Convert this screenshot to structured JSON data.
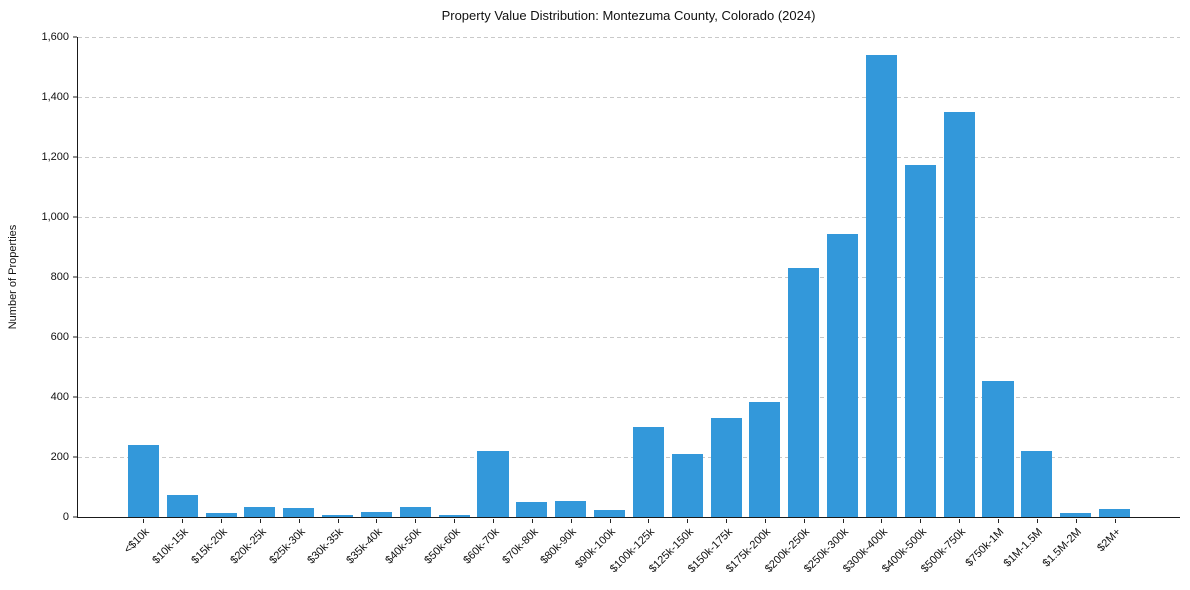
{
  "chart_data": {
    "type": "bar",
    "title": "Property Value Distribution: Montezuma County, Colorado (2024)",
    "xlabel": "",
    "ylabel": "Number of Properties",
    "categories": [
      "<$10k",
      "$10k-15k",
      "$15k-20k",
      "$20k-25k",
      "$25k-30k",
      "$30k-35k",
      "$35k-40k",
      "$40k-50k",
      "$50k-60k",
      "$60k-70k",
      "$70k-80k",
      "$80k-90k",
      "$90k-100k",
      "$100k-125k",
      "$125k-150k",
      "$150k-175k",
      "$175k-200k",
      "$200k-250k",
      "$250k-300k",
      "$300k-400k",
      "$400k-500k",
      "$500k-750k",
      "$750k-1M",
      "$1M-1.5M",
      "$1.5M-2M",
      "$2M+"
    ],
    "values": [
      240,
      75,
      15,
      35,
      30,
      8,
      18,
      35,
      8,
      220,
      50,
      55,
      25,
      300,
      210,
      330,
      385,
      830,
      945,
      1540,
      1175,
      1350,
      455,
      220,
      12,
      28
    ],
    "ylim": [
      0,
      1600
    ],
    "yticks": [
      0,
      200,
      400,
      600,
      800,
      1000,
      1200,
      1400,
      1600
    ],
    "ytick_labels": [
      "0",
      "200",
      "400",
      "600",
      "800",
      "1,000",
      "1,200",
      "1,400",
      "1,600"
    ],
    "x_tick_label_rotation_deg": 45,
    "grid": "horizontal-dashed",
    "legend": "none",
    "bar_color": "#3398da",
    "gridline_color": "#c9c9c9",
    "axis_color": "#1a1a1a",
    "text_color": "#111111"
  }
}
